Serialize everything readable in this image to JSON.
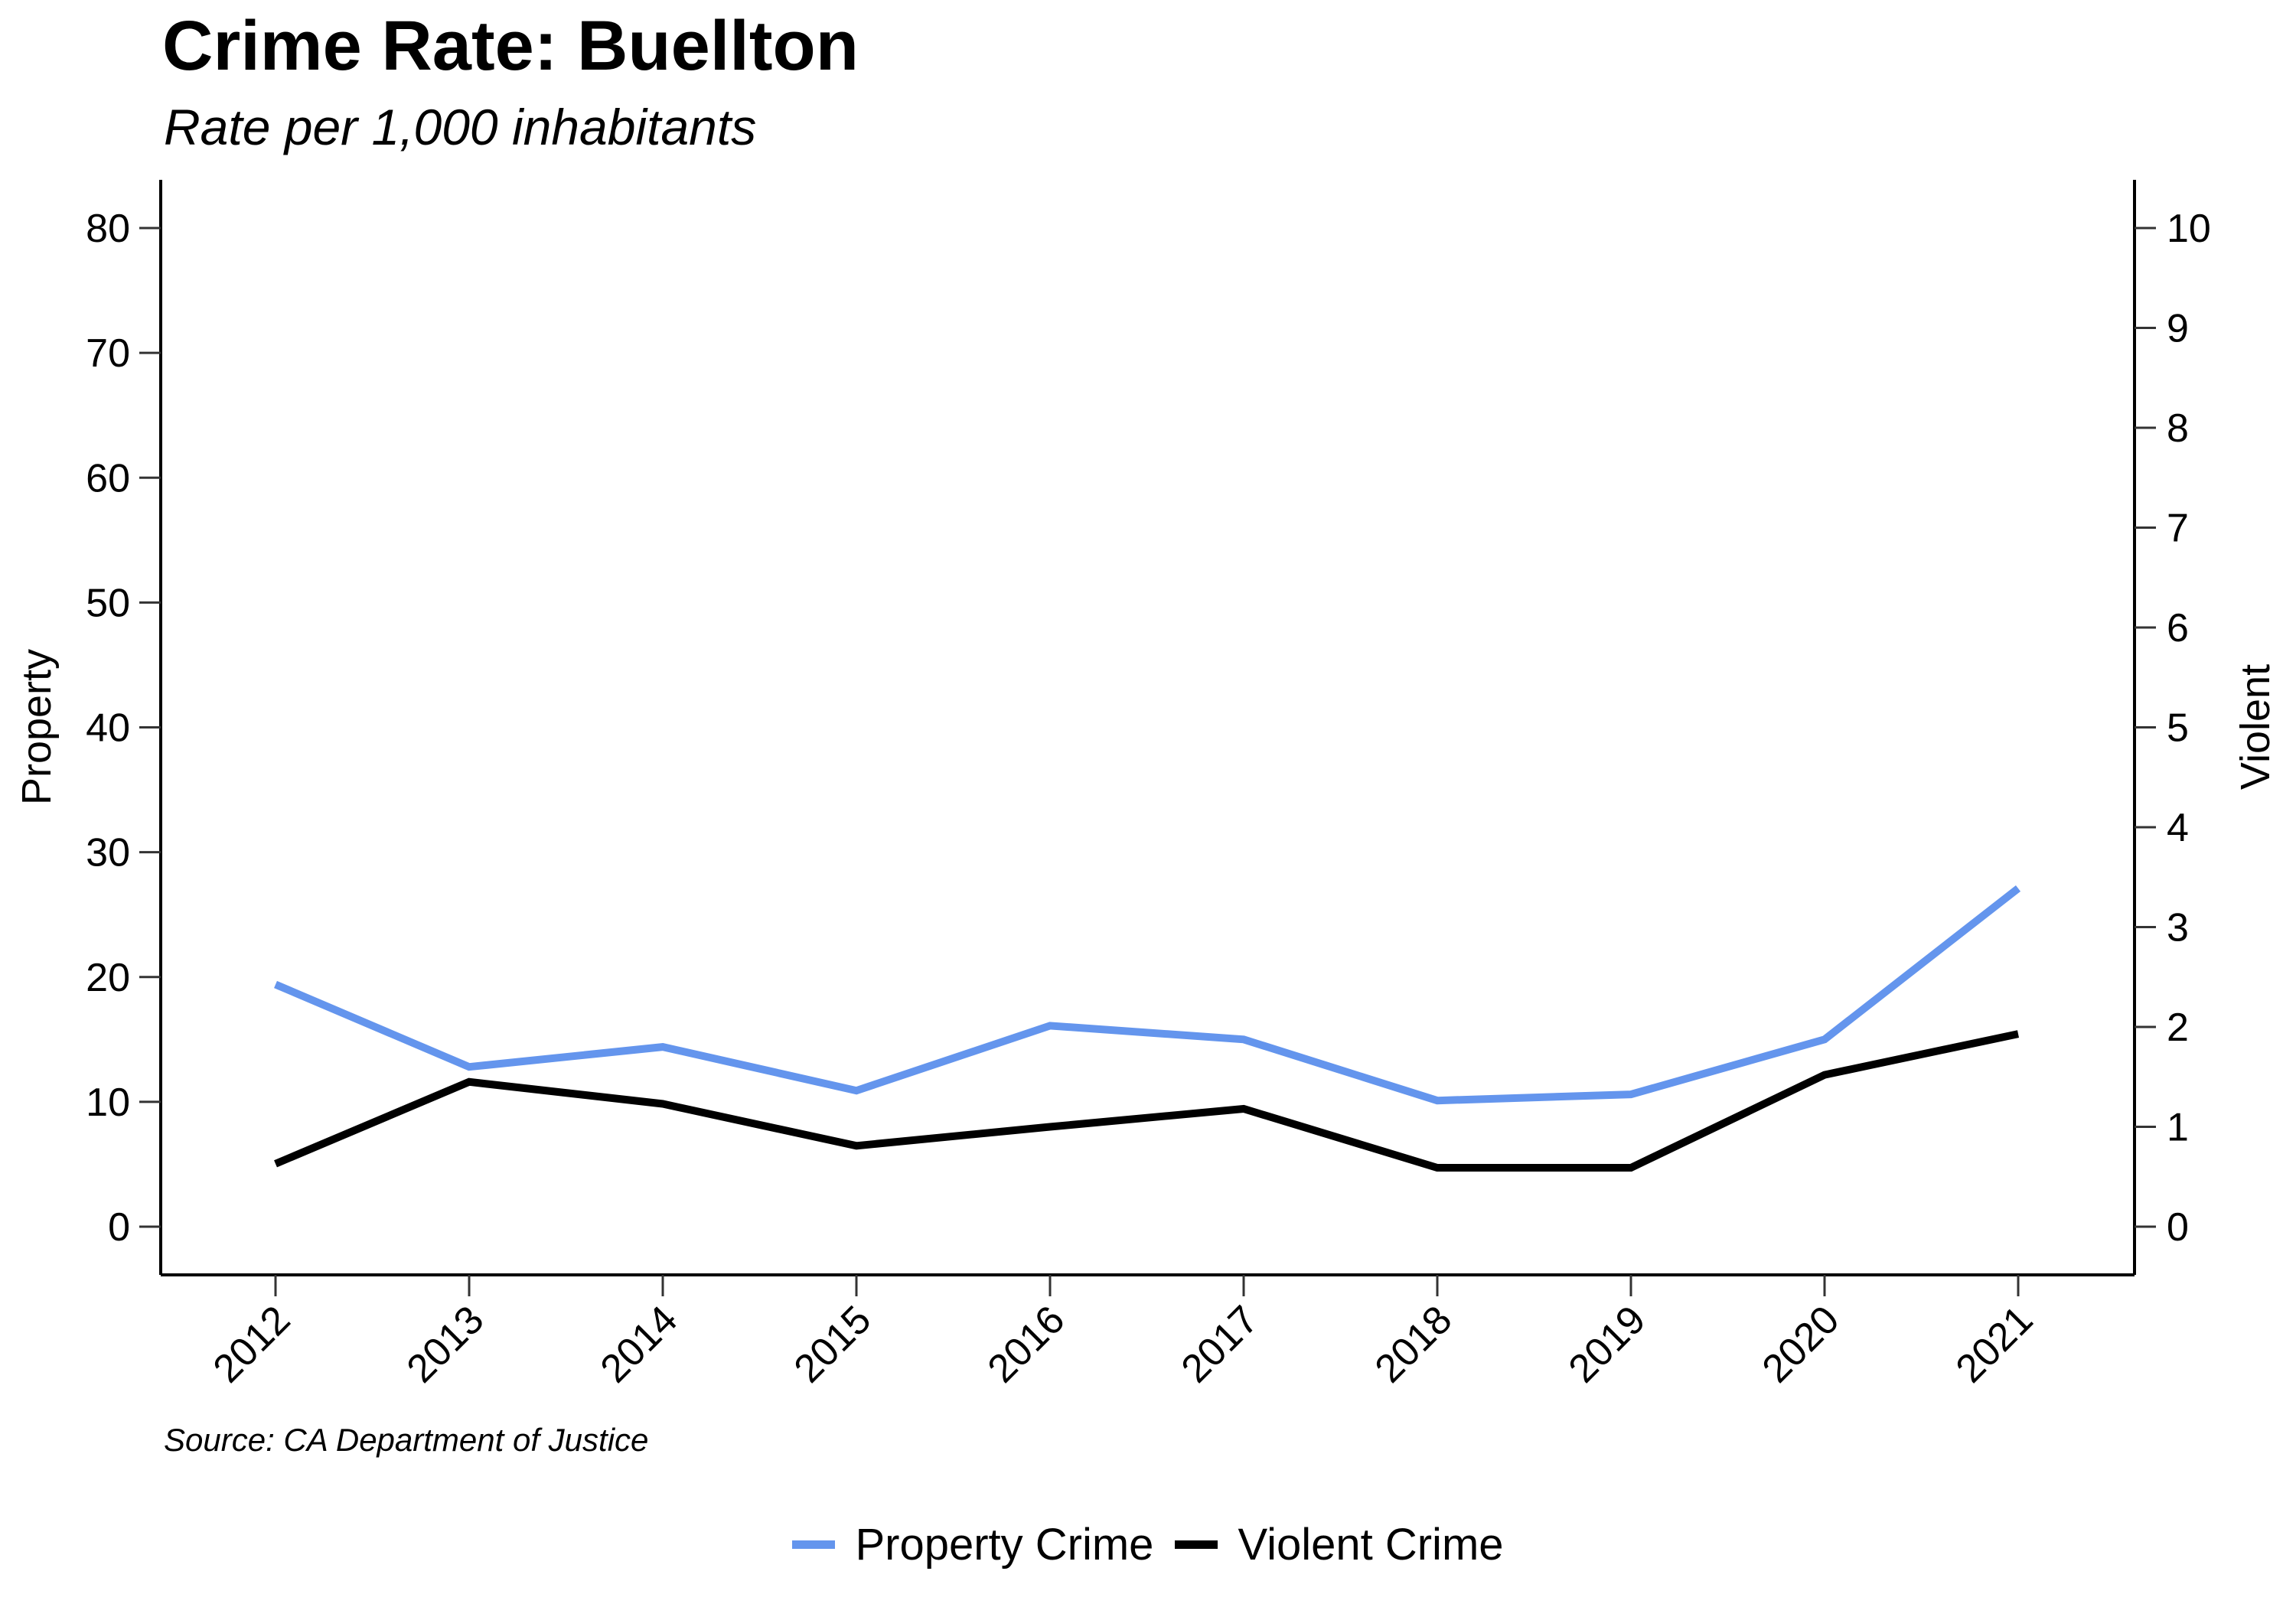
{
  "chart_data": {
    "type": "line",
    "title": "Crime Rate: Buellton",
    "subtitle": "Rate per 1,000 inhabitants",
    "source": "Source: CA Department of Justice",
    "x": [
      "2012",
      "2013",
      "2014",
      "2015",
      "2016",
      "2017",
      "2018",
      "2019",
      "2020",
      "2021"
    ],
    "y_left": {
      "label": "Property",
      "range": [
        0,
        80
      ],
      "ticks": [
        0,
        10,
        20,
        30,
        40,
        50,
        60,
        70,
        80
      ]
    },
    "y_right": {
      "label": "Violent",
      "range": [
        0,
        10
      ],
      "ticks": [
        0,
        1,
        2,
        3,
        4,
        5,
        6,
        7,
        8,
        9,
        10
      ]
    },
    "series": [
      {
        "name": "Property Crime",
        "axis": "left",
        "color": "#6495ED",
        "values": [
          19.4,
          12.8,
          14.4,
          10.9,
          16.1,
          15.0,
          10.1,
          10.6,
          15.0,
          27.1
        ]
      },
      {
        "name": "Violent Crime",
        "axis": "right",
        "color": "#000000",
        "values": [
          0.63,
          1.45,
          1.23,
          0.81,
          1.0,
          1.18,
          0.59,
          0.59,
          1.52,
          1.93
        ]
      }
    ],
    "legend_position": "bottom-center",
    "grid": false
  }
}
